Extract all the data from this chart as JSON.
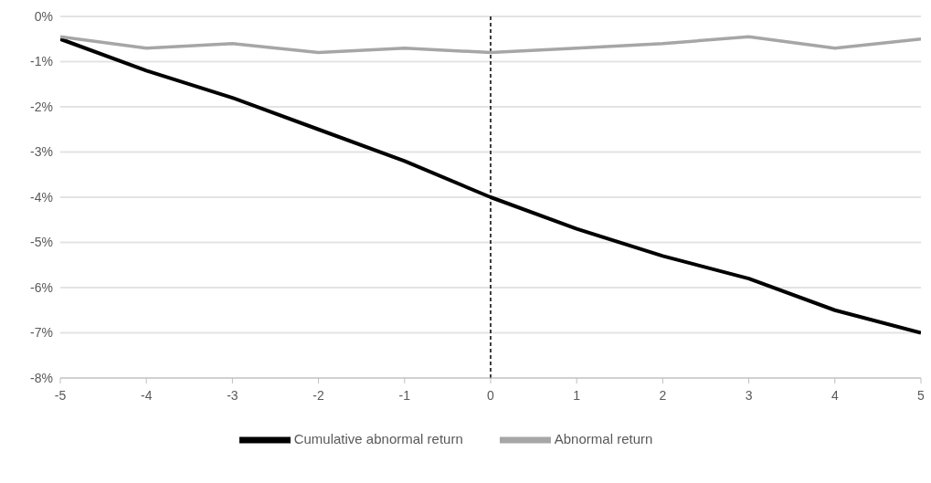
{
  "chart_data": {
    "type": "line",
    "x": [
      -5,
      -4,
      -3,
      -2,
      -1,
      0,
      1,
      2,
      3,
      4,
      5
    ],
    "series": [
      {
        "name": "Cumulative abnormal return",
        "color": "#000000",
        "values": [
          -0.5,
          -1.2,
          -1.8,
          -2.5,
          -3.2,
          -4.0,
          -4.7,
          -5.3,
          -5.8,
          -6.5,
          -7.0
        ]
      },
      {
        "name": "Abnormal return",
        "color": "#a6a6a6",
        "values": [
          -0.45,
          -0.7,
          -0.6,
          -0.8,
          -0.7,
          -0.8,
          -0.7,
          -0.6,
          -0.45,
          -0.7,
          -0.5
        ]
      }
    ],
    "xlim": [
      -5,
      5
    ],
    "xticks": [
      -5,
      -4,
      -3,
      -2,
      -1,
      0,
      1,
      2,
      3,
      4,
      5
    ],
    "ylim": [
      -8,
      0
    ],
    "yticks": [
      {
        "value": 0,
        "label": "0%"
      },
      {
        "value": -1,
        "label": "-1%"
      },
      {
        "value": -2,
        "label": "-2%"
      },
      {
        "value": -3,
        "label": "-3%"
      },
      {
        "value": -4,
        "label": "-4%"
      },
      {
        "value": -5,
        "label": "-5%"
      },
      {
        "value": -6,
        "label": "-6%"
      },
      {
        "value": -7,
        "label": "-7%"
      },
      {
        "value": -8,
        "label": "-8%"
      }
    ],
    "ref_lines": [
      {
        "axis": "x",
        "value": 0,
        "color": "#000000",
        "line_style": "dashed"
      }
    ],
    "grid": "y",
    "legend": "bottom",
    "marker": "none",
    "line_style": "solid"
  }
}
